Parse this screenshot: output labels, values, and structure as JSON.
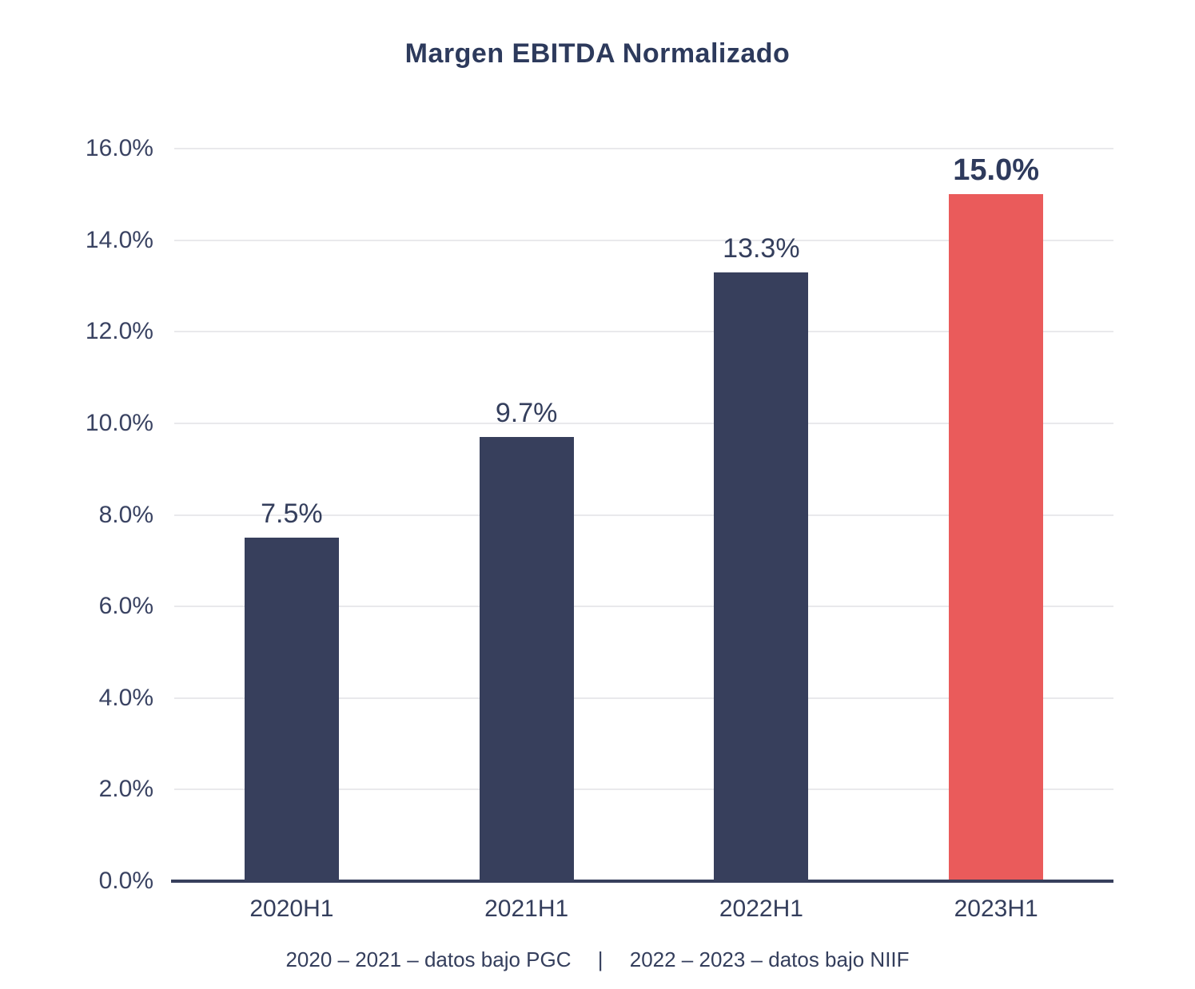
{
  "title": "Margen EBITDA Normalizado",
  "footnote": {
    "left": "2020 – 2021 – datos bajo PGC",
    "separator": "|",
    "right": "2022 – 2023 – datos bajo NIIF"
  },
  "colors": {
    "bar_default": "#373f5c",
    "bar_highlight": "#ea5b5b",
    "title_text": "#2d3a5c",
    "label_text": "#343e5c",
    "tick_text": "#3a4362",
    "gridline": "#e9e9ec",
    "axis_line": "#373f5c",
    "background": "#ffffff"
  },
  "chart_data": {
    "type": "bar",
    "title": "Margen EBITDA Normalizado",
    "categories": [
      "2020H1",
      "2021H1",
      "2022H1",
      "2023H1"
    ],
    "values": [
      7.5,
      9.7,
      13.3,
      15.0
    ],
    "value_labels": [
      "7.5%",
      "9.7%",
      "13.3%",
      "15.0%"
    ],
    "highlight_index": 3,
    "xlabel": "",
    "ylabel": "",
    "ylim": [
      0,
      16
    ],
    "ytick_step": 2,
    "yticks": [
      "0.0%",
      "2.0%",
      "4.0%",
      "6.0%",
      "8.0%",
      "10.0%",
      "12.0%",
      "14.0%",
      "16.0%"
    ],
    "grid": true,
    "legend": false
  }
}
